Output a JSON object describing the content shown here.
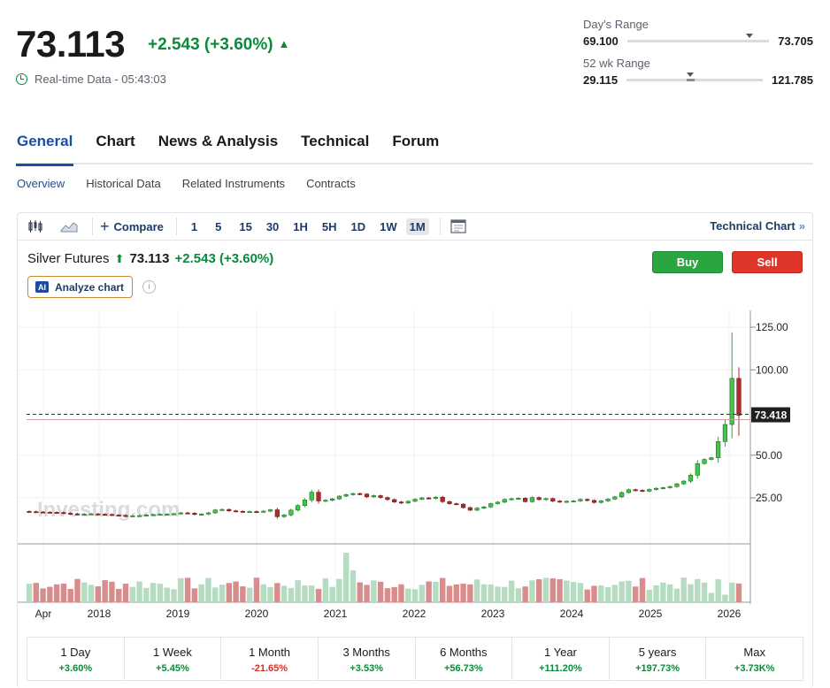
{
  "quote": {
    "last": "73.113",
    "change": "+2.543 (+3.60%)",
    "realtime": "Real-time Data - 05:43:03"
  },
  "days_range": {
    "label": "Day's Range",
    "low": "69.100",
    "high": "73.705",
    "marker_fraction": 0.86
  },
  "wk52_range": {
    "label": "52 wk Range",
    "low": "29.115",
    "high": "121.785",
    "marker_fraction": 0.47
  },
  "tabs": [
    {
      "label": "General",
      "active": true
    },
    {
      "label": "Chart"
    },
    {
      "label": "News & Analysis"
    },
    {
      "label": "Technical"
    },
    {
      "label": "Forum"
    }
  ],
  "subtabs": [
    "Overview",
    "Historical Data",
    "Related Instruments",
    "Contracts"
  ],
  "toolbar": {
    "compare_label": "Compare",
    "intervals": [
      "1",
      "5",
      "15",
      "30",
      "1H",
      "5H",
      "1D",
      "1W",
      "1M"
    ],
    "selected_interval": "1M",
    "technical_link": "Technical Chart"
  },
  "legend": {
    "name": "Silver Futures",
    "last": "73.113",
    "change": "+2.543 (+3.60%)"
  },
  "analyze_label": "Analyze chart",
  "ai_badge": "AI",
  "info_glyph": "i",
  "buy_label": "Buy",
  "sell_label": "Sell",
  "colors": {
    "up": "#0a8a3a",
    "down": "#d3302b",
    "accent": "#1a4ea1",
    "candle_up": "#3fbf3f",
    "candle_down": "#b22222"
  },
  "chart_data": {
    "type": "candlestick",
    "watermark": "Investing.com",
    "y_ticks": [
      "125.00",
      "100.00",
      "50.00",
      "25.00"
    ],
    "x_labels": [
      "Apr",
      "2018",
      "2019",
      "2020",
      "2021",
      "2022",
      "2023",
      "2024",
      "2025",
      "2026"
    ],
    "current_price_label": "73.418",
    "current_price": 73.418,
    "closes": [
      16.9,
      16.7,
      16.6,
      16.5,
      16.4,
      16.0,
      15.6,
      15.3,
      15.5,
      15.6,
      15.4,
      15.3,
      14.9,
      14.7,
      14.3,
      14.5,
      14.6,
      15.0,
      15.2,
      15.4,
      15.5,
      15.7,
      16.2,
      16.0,
      15.3,
      15.5,
      16.2,
      17.9,
      18.2,
      17.4,
      17.1,
      16.9,
      17.0,
      16.8,
      17.2,
      18.0,
      14.0,
      15.0,
      17.8,
      20.5,
      23.8,
      28.3,
      23.2,
      23.6,
      24.4,
      26.0,
      26.9,
      27.5,
      27.2,
      25.6,
      26.3,
      25.2,
      24.0,
      22.6,
      22.0,
      23.0,
      24.2,
      25.0,
      24.7,
      25.4,
      22.8,
      21.6,
      21.3,
      19.3,
      17.8,
      19.0,
      19.7,
      21.6,
      22.5,
      24.1,
      24.5,
      24.8,
      22.8,
      25.2,
      24.0,
      24.6,
      23.1,
      22.7,
      23.0,
      23.2,
      24.1,
      23.5,
      22.3,
      23.2,
      24.3,
      25.6,
      28.1,
      29.8,
      29.4,
      28.9,
      29.9,
      30.6,
      31.0,
      31.6,
      33.2,
      34.8,
      38.3,
      45.1,
      47.5,
      48.5,
      58.0,
      68.0,
      95.0,
      73.418
    ],
    "volume_bars": 104
  },
  "performance": [
    {
      "label": "1 Day",
      "value": "+3.60%",
      "dir": "pos"
    },
    {
      "label": "1 Week",
      "value": "+5.45%",
      "dir": "pos"
    },
    {
      "label": "1 Month",
      "value": "-21.65%",
      "dir": "neg"
    },
    {
      "label": "3 Months",
      "value": "+3.53%",
      "dir": "pos"
    },
    {
      "label": "6 Months",
      "value": "+56.73%",
      "dir": "pos"
    },
    {
      "label": "1 Year",
      "value": "+111.20%",
      "dir": "pos"
    },
    {
      "label": "5 years",
      "value": "+197.73%",
      "dir": "pos"
    },
    {
      "label": "Max",
      "value": "+3.73K%",
      "dir": "pos"
    }
  ]
}
